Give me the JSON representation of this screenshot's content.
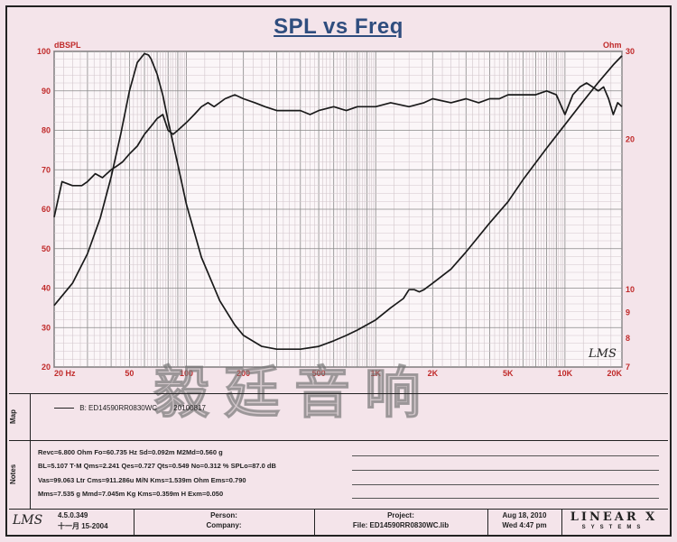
{
  "chart_data": {
    "type": "line",
    "title": "SPL vs Freq",
    "xscale": "log",
    "xlim": [
      20,
      20000
    ],
    "left_axis": {
      "label": "dBSPL",
      "ylim": [
        20,
        100
      ],
      "ticks": [
        100,
        90,
        80,
        70,
        60,
        50,
        40,
        30,
        20
      ]
    },
    "right_axis": {
      "label": "Ohm",
      "ylim": [
        7,
        30
      ],
      "ticks": [
        30,
        20,
        10,
        9,
        8,
        7
      ]
    },
    "x_ticks": [
      {
        "value": 20,
        "label": "20 Hz"
      },
      {
        "value": 50,
        "label": "50"
      },
      {
        "value": 100,
        "label": "100"
      },
      {
        "value": 200,
        "label": "200"
      },
      {
        "value": 500,
        "label": "500"
      },
      {
        "value": 1000,
        "label": "1K"
      },
      {
        "value": 2000,
        "label": "2K"
      },
      {
        "value": 5000,
        "label": "5K"
      },
      {
        "value": 10000,
        "label": "10K"
      },
      {
        "value": 20000,
        "label": "20K"
      }
    ],
    "series": [
      {
        "name": "SPL",
        "axis": "left",
        "x": [
          20,
          22,
          25,
          28,
          30,
          33,
          36,
          40,
          43,
          46,
          50,
          55,
          60,
          65,
          70,
          75,
          80,
          85,
          90,
          100,
          110,
          120,
          130,
          140,
          160,
          180,
          200,
          230,
          260,
          300,
          350,
          400,
          450,
          500,
          600,
          700,
          800,
          1000,
          1200,
          1500,
          1800,
          2000,
          2500,
          3000,
          3500,
          4000,
          4500,
          5000,
          6000,
          7000,
          8000,
          9000,
          10000,
          11000,
          12000,
          13000,
          14000,
          15000,
          16000,
          17000,
          18000,
          19000,
          20000
        ],
        "y": [
          58,
          67,
          66,
          66,
          67,
          69,
          68,
          70,
          71,
          72,
          74,
          76,
          79,
          81,
          83,
          84,
          80,
          79,
          80,
          82,
          84,
          86,
          87,
          86,
          88,
          89,
          88,
          87,
          86,
          85,
          85,
          85,
          84,
          85,
          86,
          85,
          86,
          86,
          87,
          86,
          87,
          88,
          87,
          88,
          87,
          88,
          88,
          89,
          89,
          89,
          90,
          89,
          84,
          89,
          91,
          92,
          91,
          90,
          91,
          88,
          84,
          87,
          86
        ]
      },
      {
        "name": "Impedance",
        "axis": "right",
        "x": [
          20,
          25,
          30,
          35,
          40,
          45,
          50,
          55,
          60,
          63,
          65,
          70,
          75,
          80,
          90,
          100,
          120,
          150,
          180,
          200,
          250,
          300,
          350,
          400,
          500,
          600,
          700,
          800,
          1000,
          1200,
          1400,
          1500,
          1600,
          1700,
          1800,
          2000,
          2500,
          3000,
          4000,
          5000,
          6000,
          8000,
          10000,
          12000,
          15000,
          18000,
          20000
        ],
        "y": [
          9.3,
          10.3,
          11.8,
          13.9,
          16.8,
          20.5,
          25.0,
          28.5,
          29.7,
          29.5,
          29.0,
          27.0,
          24.5,
          21.8,
          17.8,
          14.8,
          11.6,
          9.5,
          8.5,
          8.1,
          7.7,
          7.6,
          7.6,
          7.6,
          7.7,
          7.9,
          8.1,
          8.3,
          8.7,
          9.2,
          9.6,
          10.0,
          10.0,
          9.9,
          10.0,
          10.3,
          11.0,
          11.9,
          13.6,
          15.0,
          16.6,
          19.2,
          21.4,
          23.4,
          26.0,
          28.2,
          29.4
        ]
      }
    ]
  },
  "header": {
    "left_unit": "dBSPL",
    "right_unit": "Ohm"
  },
  "watermark": "毅廷音响",
  "map": {
    "side_label": "Map",
    "legend_item": "B: ED14590RR0830WC",
    "legend_code": "20100817"
  },
  "notes": {
    "side_label": "Notes",
    "lines": [
      "Revc=6.800 Ohm  Fo=60.735 Hz  Sd=0.092m  M2Md=0.560 g",
      "BL=5.107 T·M  Qms=2.241  Qes=0.727  Qts=0.549  No=0.312 %  SPLo=87.0 dB",
      "Vas=99.063 Ltr  Cms=911.286u M/N  Kms=1.539m Ohm  Ems=0.790",
      "Mms=7.535 g  Mmd=7.045m Kg  Kms=0.359m H  Exm=0.050"
    ]
  },
  "footer": {
    "brand": "LMS",
    "version": "4.5.0.349",
    "version_date": "十一月 15-2004",
    "person_label": "Person:",
    "company_label": "Company:",
    "project_label": "Project:",
    "file_label": "File: ED14590RR0830WC.lib",
    "date": "Aug 18, 2010",
    "time": "Wed  4:47 pm",
    "maker_line1": "LINEAR X",
    "maker_line2": "SYSTEMS"
  },
  "plot_logo": "LMS"
}
